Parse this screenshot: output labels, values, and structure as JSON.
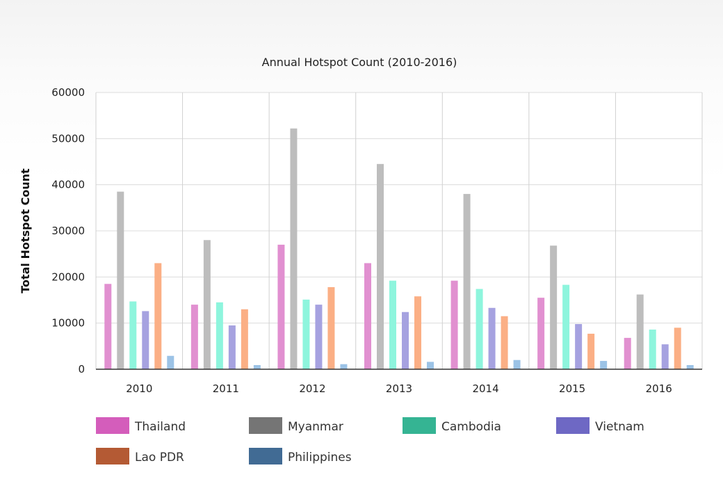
{
  "chart_data": {
    "type": "bar",
    "title": "Annual Hotspot Count (2010-2016)",
    "xlabel": "",
    "ylabel": "Total Hotspot Count",
    "ylim": [
      0,
      60000
    ],
    "yticks": [
      "0",
      "10000",
      "20000",
      "30000",
      "40000",
      "50000",
      "60000"
    ],
    "categories": [
      "2010",
      "2011",
      "2012",
      "2013",
      "2014",
      "2015",
      "2016"
    ],
    "grid": true,
    "legend_position": "bottom",
    "series": [
      {
        "name": "Thailand",
        "bar_color": "#e190d0",
        "legend_color": "#d45dbb",
        "values": [
          18500,
          14000,
          27000,
          23000,
          19200,
          15500,
          6800
        ]
      },
      {
        "name": "Myanmar",
        "bar_color": "#bdbdbd",
        "legend_color": "#757575",
        "values": [
          38500,
          28000,
          52200,
          44500,
          38000,
          26800,
          16200
        ]
      },
      {
        "name": "Cambodia",
        "bar_color": "#8ef5dd",
        "legend_color": "#35b493",
        "values": [
          14700,
          14500,
          15100,
          19200,
          17400,
          18300,
          8600
        ]
      },
      {
        "name": "Vietnam",
        "bar_color": "#a6a2e0",
        "legend_color": "#6e68c4",
        "values": [
          12600,
          9500,
          14000,
          12400,
          13300,
          9800,
          5400
        ]
      },
      {
        "name": "Lao PDR",
        "bar_color": "#fbaf85",
        "legend_color": "#b45a34",
        "values": [
          23000,
          13000,
          17800,
          15800,
          11500,
          7700,
          9000
        ]
      },
      {
        "name": "Philippines",
        "bar_color": "#9cc3e6",
        "legend_color": "#416b94",
        "values": [
          2900,
          900,
          1100,
          1600,
          2000,
          1800,
          900
        ]
      }
    ]
  }
}
